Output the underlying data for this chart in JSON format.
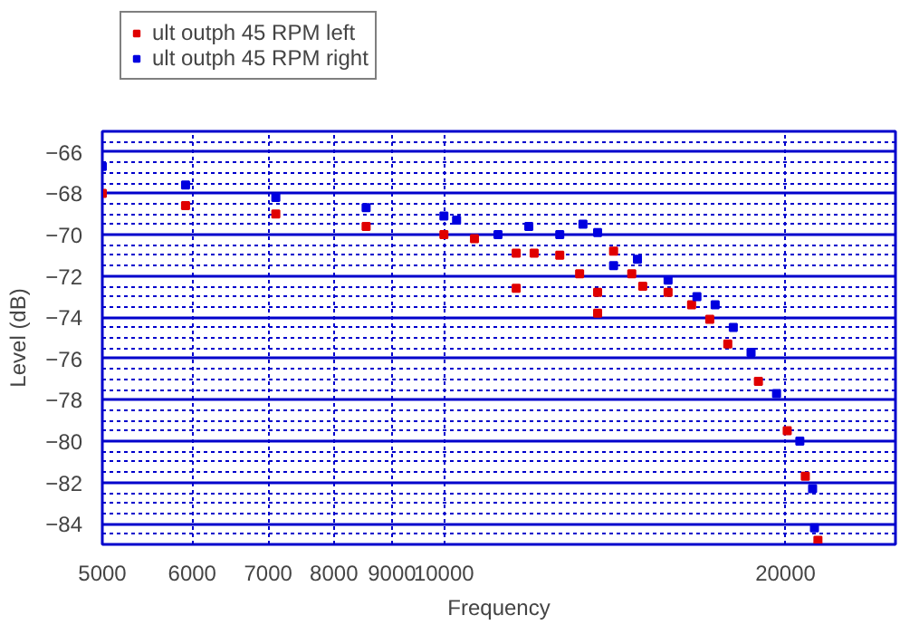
{
  "chart_data": {
    "type": "scatter",
    "xlabel": "Frequency",
    "ylabel": "Level (dB)",
    "log": "x",
    "xlim": [
      5000,
      25000
    ],
    "xticks": [
      5000,
      6000,
      7000,
      8000,
      9000,
      10000,
      20000
    ],
    "ylim": [
      -85,
      -65
    ],
    "yticks": [
      -84,
      -82,
      -80,
      -78,
      -76,
      -74,
      -72,
      -70,
      -68,
      -66
    ],
    "grid": true,
    "legend": "top",
    "marker": "square",
    "series": [
      {
        "name": "ult outph 45 RPM left",
        "color": "#e00000",
        "x": [
          5000,
          5920,
          7110,
          8540,
          10000,
          10640,
          11580,
          11580,
          12010,
          12650,
          13170,
          13660,
          13660,
          14110,
          14640,
          14970,
          15760,
          16530,
          17150,
          17790,
          18930,
          20070,
          20820,
          21360
        ],
        "values": [
          -68.0,
          -68.6,
          -69.0,
          -69.6,
          -70.0,
          -70.2,
          -70.9,
          -72.6,
          -70.9,
          -71.0,
          -71.9,
          -72.8,
          -73.8,
          -70.8,
          -71.9,
          -72.5,
          -72.8,
          -73.4,
          -74.1,
          -75.3,
          -77.1,
          -79.5,
          -81.7,
          -84.8
        ]
      },
      {
        "name": "ult outph 45 RPM right",
        "color": "#0000e0",
        "x": [
          5000,
          5920,
          7110,
          8540,
          10000,
          10260,
          11160,
          11880,
          12650,
          13260,
          13660,
          14110,
          14810,
          15760,
          16710,
          17340,
          17990,
          18650,
          19640,
          20590,
          21130,
          21210
        ],
        "values": [
          -66.7,
          -67.6,
          -68.2,
          -68.7,
          -69.1,
          -69.3,
          -70.0,
          -69.6,
          -70.0,
          -69.5,
          -69.9,
          -71.5,
          -71.2,
          -72.2,
          -73.0,
          -73.4,
          -74.5,
          -75.7,
          -77.7,
          -80.0,
          -82.3,
          -84.2
        ]
      }
    ]
  }
}
